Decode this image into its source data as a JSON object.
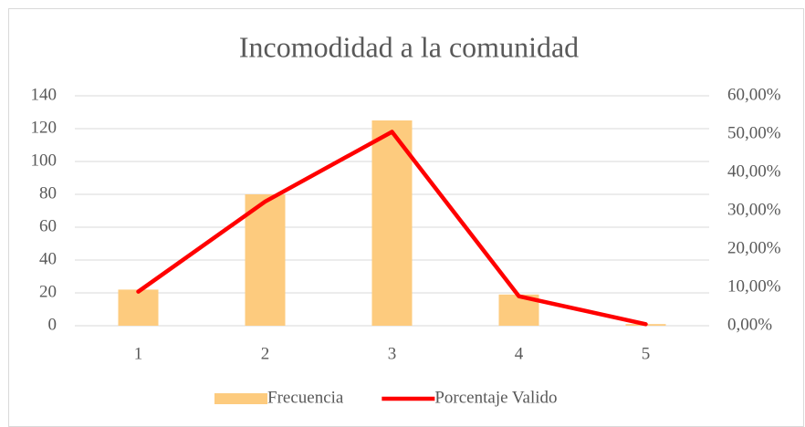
{
  "chart_data": {
    "type": "bar",
    "title": "Incomodidad a la comunidad",
    "categories": [
      "1",
      "2",
      "3",
      "4",
      "5"
    ],
    "series": [
      {
        "name": "Frecuencia",
        "type": "bar",
        "color": "#fdcb7e",
        "values": [
          22,
          80,
          125,
          19,
          1
        ]
      },
      {
        "name": "Porcentaje Valido",
        "type": "line",
        "axis": "y2",
        "color": "#ff0000",
        "values": [
          8.9,
          32.4,
          50.6,
          7.7,
          0.4
        ]
      }
    ],
    "ylim": [
      0,
      140
    ],
    "yticks": [
      0,
      20,
      40,
      60,
      80,
      100,
      120,
      140
    ],
    "y2lim": [
      0,
      60
    ],
    "y2ticks": [
      {
        "value": 0,
        "label": "0,00%"
      },
      {
        "value": 10,
        "label": "10,00%"
      },
      {
        "value": 20,
        "label": "20,00%"
      },
      {
        "value": 30,
        "label": "30,00%"
      },
      {
        "value": 40,
        "label": "40,00%"
      },
      {
        "value": 50,
        "label": "50,00%"
      },
      {
        "value": 60,
        "label": "60,00%"
      }
    ],
    "grid": true,
    "legend": "bottom"
  }
}
